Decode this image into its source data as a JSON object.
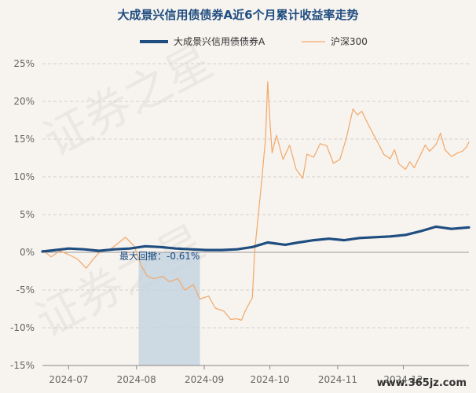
{
  "chart_data": {
    "type": "line",
    "title": "大成景兴信用债债券A近6个月累计收益率走势",
    "legend_position": "top",
    "grid": true,
    "ylim": [
      -15,
      25
    ],
    "yticks": [
      25,
      20,
      15,
      10,
      5,
      0,
      -5,
      -10,
      -15
    ],
    "ytick_labels": [
      "25%",
      "20%",
      "15%",
      "10%",
      "5%",
      "0%",
      "-5%",
      "-10%",
      "-15%"
    ],
    "xlim": [
      "2024-06-19",
      "2024-12-31"
    ],
    "xticks": [
      {
        "date": "2024-07-01",
        "label": "2024-07"
      },
      {
        "date": "2024-08-01",
        "label": "2024-08"
      },
      {
        "date": "2024-09-01",
        "label": "2024-09"
      },
      {
        "date": "2024-10-01",
        "label": "2024-10"
      },
      {
        "date": "2024-11-01",
        "label": "2024-11"
      },
      {
        "date": "2024-12-01",
        "label": "2024-12"
      }
    ],
    "series": [
      {
        "name": "大成景兴信用债债券A",
        "color": "#1f4d80",
        "points": [
          [
            "2024-06-19",
            0.1
          ],
          [
            "2024-06-25",
            0.3
          ],
          [
            "2024-07-01",
            0.5
          ],
          [
            "2024-07-08",
            0.4
          ],
          [
            "2024-07-15",
            0.2
          ],
          [
            "2024-07-22",
            0.4
          ],
          [
            "2024-07-29",
            0.5
          ],
          [
            "2024-08-05",
            0.8
          ],
          [
            "2024-08-12",
            0.7
          ],
          [
            "2024-08-19",
            0.5
          ],
          [
            "2024-08-26",
            0.4
          ],
          [
            "2024-09-02",
            0.3
          ],
          [
            "2024-09-09",
            0.3
          ],
          [
            "2024-09-16",
            0.4
          ],
          [
            "2024-09-23",
            0.7
          ],
          [
            "2024-09-30",
            1.3
          ],
          [
            "2024-10-08",
            1.0
          ],
          [
            "2024-10-14",
            1.3
          ],
          [
            "2024-10-21",
            1.6
          ],
          [
            "2024-10-28",
            1.8
          ],
          [
            "2024-11-04",
            1.6
          ],
          [
            "2024-11-11",
            1.9
          ],
          [
            "2024-11-18",
            2.0
          ],
          [
            "2024-11-25",
            2.1
          ],
          [
            "2024-12-02",
            2.3
          ],
          [
            "2024-12-09",
            2.8
          ],
          [
            "2024-12-16",
            3.4
          ],
          [
            "2024-12-23",
            3.1
          ],
          [
            "2024-12-31",
            3.3
          ]
        ]
      },
      {
        "name": "沪深300",
        "color": "#f2a868",
        "points": [
          [
            "2024-06-19",
            0.3
          ],
          [
            "2024-06-23",
            -0.6
          ],
          [
            "2024-06-27",
            0.2
          ],
          [
            "2024-07-01",
            -0.3
          ],
          [
            "2024-07-05",
            -0.9
          ],
          [
            "2024-07-09",
            -2.1
          ],
          [
            "2024-07-12",
            -1.0
          ],
          [
            "2024-07-16",
            0.3
          ],
          [
            "2024-07-20",
            0.4
          ],
          [
            "2024-07-24",
            1.3
          ],
          [
            "2024-07-27",
            2.0
          ],
          [
            "2024-07-31",
            0.8
          ],
          [
            "2024-08-03",
            -1.7
          ],
          [
            "2024-08-06",
            -3.2
          ],
          [
            "2024-08-09",
            -3.5
          ],
          [
            "2024-08-13",
            -3.2
          ],
          [
            "2024-08-16",
            -3.9
          ],
          [
            "2024-08-20",
            -3.5
          ],
          [
            "2024-08-23",
            -5.0
          ],
          [
            "2024-08-27",
            -4.3
          ],
          [
            "2024-08-30",
            -6.2
          ],
          [
            "2024-09-03",
            -5.8
          ],
          [
            "2024-09-06",
            -7.4
          ],
          [
            "2024-09-10",
            -7.8
          ],
          [
            "2024-09-13",
            -8.9
          ],
          [
            "2024-09-16",
            -8.8
          ],
          [
            "2024-09-18",
            -9.0
          ],
          [
            "2024-09-20",
            -7.6
          ],
          [
            "2024-09-23",
            -6.0
          ],
          [
            "2024-09-24",
            0.0
          ],
          [
            "2024-09-26",
            5.8
          ],
          [
            "2024-09-27",
            8.8
          ],
          [
            "2024-09-29",
            15.0
          ],
          [
            "2024-09-30",
            22.6
          ],
          [
            "2024-10-01",
            17.5
          ],
          [
            "2024-10-02",
            13.2
          ],
          [
            "2024-10-04",
            15.5
          ],
          [
            "2024-10-07",
            12.3
          ],
          [
            "2024-10-10",
            14.2
          ],
          [
            "2024-10-13",
            11.0
          ],
          [
            "2024-10-16",
            9.8
          ],
          [
            "2024-10-18",
            13.0
          ],
          [
            "2024-10-21",
            12.6
          ],
          [
            "2024-10-24",
            14.4
          ],
          [
            "2024-10-27",
            14.1
          ],
          [
            "2024-10-30",
            11.8
          ],
          [
            "2024-11-02",
            12.3
          ],
          [
            "2024-11-05",
            15.2
          ],
          [
            "2024-11-08",
            19.0
          ],
          [
            "2024-11-10",
            18.2
          ],
          [
            "2024-11-12",
            18.7
          ],
          [
            "2024-11-14",
            17.5
          ],
          [
            "2024-11-17",
            15.8
          ],
          [
            "2024-11-20",
            14.2
          ],
          [
            "2024-11-22",
            13.0
          ],
          [
            "2024-11-25",
            12.4
          ],
          [
            "2024-11-27",
            13.6
          ],
          [
            "2024-11-29",
            11.7
          ],
          [
            "2024-12-02",
            11.0
          ],
          [
            "2024-12-04",
            12.0
          ],
          [
            "2024-12-06",
            11.2
          ],
          [
            "2024-12-09",
            13.0
          ],
          [
            "2024-12-11",
            14.2
          ],
          [
            "2024-12-13",
            13.4
          ],
          [
            "2024-12-16",
            14.3
          ],
          [
            "2024-12-18",
            15.8
          ],
          [
            "2024-12-20",
            13.6
          ],
          [
            "2024-12-23",
            12.7
          ],
          [
            "2024-12-26",
            13.2
          ],
          [
            "2024-12-28",
            13.4
          ],
          [
            "2024-12-30",
            14.0
          ],
          [
            "2024-12-31",
            14.6
          ]
        ]
      }
    ],
    "annotations": [
      {
        "text": "最大回撤：-0.61%",
        "shaded_range": [
          "2024-08-02",
          "2024-08-30"
        ],
        "shade_color": "#c5d3e0"
      }
    ]
  },
  "watermarks": {
    "background_text": [
      "证券之星",
      "证券之星"
    ],
    "corner_text": "www.365jz.com"
  }
}
